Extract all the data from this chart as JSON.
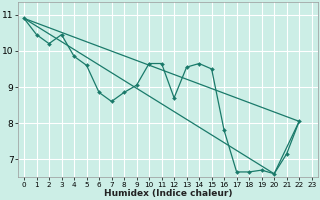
{
  "xlabel": "Humidex (Indice chaleur)",
  "bg_color": "#cceee6",
  "grid_color": "#ffffff",
  "line_color": "#1a7a6a",
  "xlim": [
    -0.5,
    23.5
  ],
  "ylim": [
    6.5,
    11.35
  ],
  "xticks": [
    0,
    1,
    2,
    3,
    4,
    5,
    6,
    7,
    8,
    9,
    10,
    11,
    12,
    13,
    14,
    15,
    16,
    17,
    18,
    19,
    20,
    21,
    22,
    23
  ],
  "yticks": [
    7,
    8,
    9,
    10,
    11
  ],
  "jagged_x": [
    0,
    1,
    2,
    3,
    4,
    5,
    6,
    7,
    8,
    9,
    10,
    11,
    12,
    13,
    14,
    15,
    16,
    17,
    18,
    19,
    20,
    21,
    22
  ],
  "jagged_y": [
    10.9,
    10.45,
    10.2,
    10.45,
    9.85,
    9.6,
    8.85,
    8.6,
    8.85,
    9.05,
    9.65,
    9.65,
    8.7,
    9.55,
    9.65,
    9.5,
    7.8,
    6.65,
    6.65,
    6.7,
    6.6,
    7.15,
    8.05
  ],
  "upper_line_x": [
    0,
    22
  ],
  "upper_line_y": [
    10.9,
    8.05
  ],
  "lower_line_x": [
    0,
    20,
    22
  ],
  "lower_line_y": [
    10.9,
    6.6,
    8.05
  ]
}
